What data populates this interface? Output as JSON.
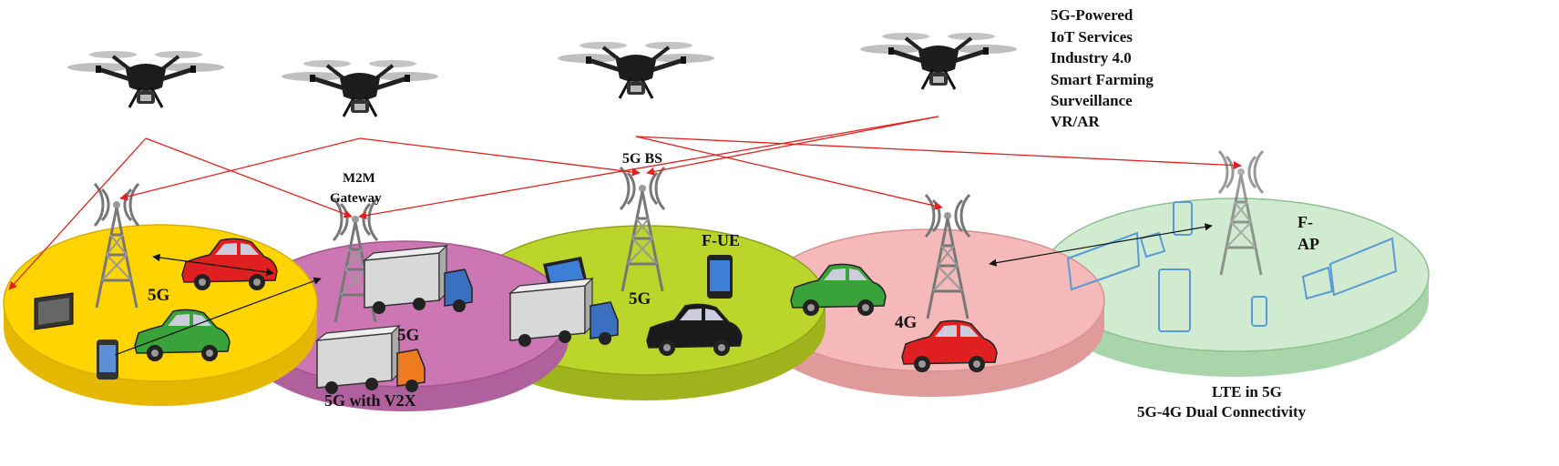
{
  "labels": {
    "services_title": "5G-Powered",
    "services": [
      "IoT  Services",
      "Industry 4.0",
      "Smart Farming",
      "Surveillance",
      "VR/AR"
    ],
    "m2m_line1": "M2M",
    "m2m_line2": "Gateway",
    "bs": "5G BS",
    "fue": "F-UE",
    "fap_line1": "F-",
    "fap_line2": "AP",
    "cell1": "5G",
    "cell2": "5G",
    "cell3": "5G",
    "cell4": "4G",
    "v2x": "5G with V2X",
    "lte_line1": "LTE in 5G",
    "lte_line2": "5G-4G Dual Connectivity"
  },
  "colors": {
    "cell_5g": "#ffd400",
    "cell_v2x": "#cc77b4",
    "cell_fue": "#bcd52a",
    "cell_4g": "#f6b9b9",
    "cell_lte": "#d0ebd0",
    "link": "#e0201c"
  }
}
